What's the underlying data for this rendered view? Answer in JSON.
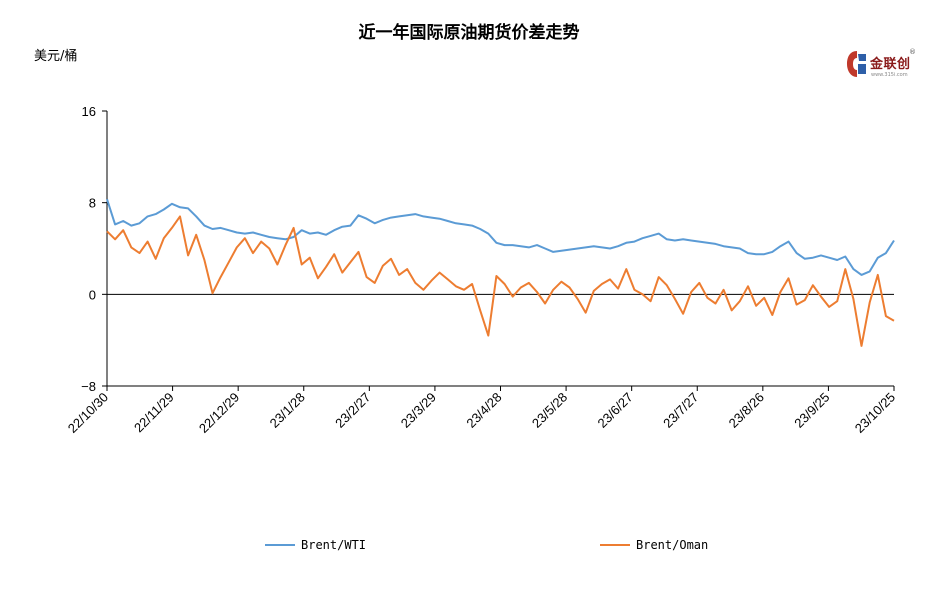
{
  "chart_data": {
    "type": "line",
    "title": "近一年国际原油期货价差走势",
    "ylabel": "美元/桶",
    "ylim": [
      -8,
      16
    ],
    "yticks": [
      "16",
      "8",
      "0",
      "−8"
    ],
    "ytick_values": [
      16,
      8,
      0,
      -8
    ],
    "xlabels": [
      "22/10/30",
      "22/11/29",
      "22/12/29",
      "23/1/28",
      "23/2/27",
      "23/3/29",
      "23/4/28",
      "23/5/28",
      "23/6/27",
      "23/7/27",
      "23/8/26",
      "23/9/25",
      "23/10/25"
    ],
    "series": [
      {
        "name": "Brent/WTI",
        "color": "#5b9bd5",
        "values": [
          8.3,
          6.1,
          6.4,
          6.0,
          6.2,
          6.8,
          7.0,
          7.4,
          7.9,
          7.6,
          7.5,
          6.8,
          6.0,
          5.7,
          5.8,
          5.6,
          5.4,
          5.3,
          5.4,
          5.2,
          5.0,
          4.9,
          4.8,
          5.0,
          5.6,
          5.3,
          5.4,
          5.2,
          5.6,
          5.9,
          6.0,
          6.9,
          6.6,
          6.2,
          6.5,
          6.7,
          6.8,
          6.9,
          7.0,
          6.8,
          6.7,
          6.6,
          6.4,
          6.2,
          6.1,
          6.0,
          5.7,
          5.3,
          4.5,
          4.3,
          4.3,
          4.2,
          4.1,
          4.3,
          4.0,
          3.7,
          3.8,
          3.9,
          4.0,
          4.1,
          4.2,
          4.1,
          4.0,
          4.2,
          4.5,
          4.6,
          4.9,
          5.1,
          5.3,
          4.8,
          4.7,
          4.8,
          4.7,
          4.6,
          4.5,
          4.4,
          4.2,
          4.1,
          4.0,
          3.6,
          3.5,
          3.5,
          3.7,
          4.2,
          4.6,
          3.6,
          3.1,
          3.2,
          3.4,
          3.2,
          3.0,
          3.3,
          2.2,
          1.7,
          2.0,
          3.2,
          3.6,
          4.7
        ]
      },
      {
        "name": "Brent/Oman",
        "color": "#ed7d31",
        "values": [
          5.5,
          4.8,
          5.6,
          4.1,
          3.6,
          4.6,
          3.1,
          4.9,
          5.8,
          6.8,
          3.4,
          5.2,
          3.0,
          0.1,
          1.5,
          2.8,
          4.1,
          4.9,
          3.6,
          4.6,
          4.0,
          2.6,
          4.3,
          5.8,
          2.6,
          3.2,
          1.4,
          2.4,
          3.5,
          1.9,
          2.8,
          3.7,
          1.5,
          1.0,
          2.5,
          3.1,
          1.7,
          2.2,
          1.0,
          0.4,
          1.2,
          1.9,
          1.3,
          0.7,
          0.4,
          0.9,
          -1.4,
          -3.6,
          1.6,
          0.9,
          -0.2,
          0.6,
          1.0,
          0.2,
          -0.8,
          0.4,
          1.1,
          0.6,
          -0.4,
          -1.6,
          0.3,
          0.9,
          1.3,
          0.5,
          2.2,
          0.4,
          0.0,
          -0.6,
          1.5,
          0.8,
          -0.4,
          -1.7,
          0.2,
          1.0,
          -0.3,
          -0.8,
          0.4,
          -1.4,
          -0.6,
          0.7,
          -1.0,
          -0.3,
          -1.8,
          0.2,
          1.4,
          -0.9,
          -0.5,
          0.8,
          -0.2,
          -1.1,
          -0.6,
          2.2,
          -0.4,
          -4.5,
          -0.7,
          1.7,
          -1.9,
          -2.3
        ]
      }
    ]
  },
  "logo": {
    "text": "金联创",
    "sub": "www.315i.com",
    "reg": "®"
  }
}
